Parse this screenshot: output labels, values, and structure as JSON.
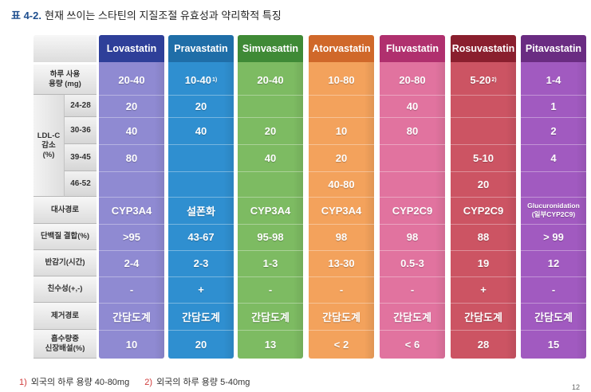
{
  "title": {
    "number": "표 4-2.",
    "text": "현재 쓰이는 스타틴의 지질조절 유효성과 약리학적 특징"
  },
  "drugs": [
    {
      "name": "Lovastatin",
      "header_color": "#2e3f99",
      "body_color": "#8f8ad2"
    },
    {
      "name": "Pravastatin",
      "header_color": "#1f6ea8",
      "body_color": "#2f8fd0"
    },
    {
      "name": "Simvasattin",
      "header_color": "#3f8a36",
      "body_color": "#7dbb62"
    },
    {
      "name": "Atorvastatin",
      "header_color": "#d0682a",
      "body_color": "#f3a25c"
    },
    {
      "name": "Fluvastatin",
      "header_color": "#b0306e",
      "body_color": "#e1739f"
    },
    {
      "name": "Rosuvastatin",
      "header_color": "#8a1f2e",
      "body_color": "#cc5463"
    },
    {
      "name": "Pitavastatin",
      "header_color": "#6a2c82",
      "body_color": "#a15ac0"
    }
  ],
  "row_headers": {
    "dose": "하루 사용\n용량 (mg)",
    "ldl_group": "LDL-C\n감소\n(%)",
    "ldl_ranges": [
      "24-28",
      "30-36",
      "39-45",
      "46-52"
    ],
    "metabolism": "대사경로",
    "protein": "단백질 결합(%)",
    "halflife": "반감기(시간)",
    "affinity": "친수성(+,-)",
    "elimination": "제거경로",
    "renal": "흡수량중\n신장배설(%)"
  },
  "values": {
    "dose": [
      "20-40",
      "10-40",
      "20-40",
      "10-80",
      "20-80",
      "5-20",
      "1-4"
    ],
    "dose_marks": [
      "",
      "1)",
      "",
      "",
      "",
      "2)",
      ""
    ],
    "ldl": [
      [
        "20",
        "20",
        "",
        "",
        "40",
        "",
        "1"
      ],
      [
        "40",
        "40",
        "20",
        "10",
        "80",
        "",
        "2"
      ],
      [
        "80",
        "",
        "40",
        "20",
        "",
        "5-10",
        "4"
      ],
      [
        "",
        "",
        "",
        "40-80",
        "",
        "20",
        ""
      ]
    ],
    "metabolism": [
      "CYP3A4",
      "설폰화",
      "CYP3A4",
      "CYP3A4",
      "CYP2C9",
      "CYP2C9",
      "Glucuronidation\n(일부CYP2C9)"
    ],
    "protein": [
      ">95",
      "43-67",
      "95-98",
      "98",
      "98",
      "88",
      "> 99"
    ],
    "halflife": [
      "2-4",
      "2-3",
      "1-3",
      "13-30",
      "0.5-3",
      "19",
      "12"
    ],
    "affinity": [
      "-",
      "+",
      "-",
      "-",
      "-",
      "+",
      "-"
    ],
    "elimination": [
      "간담도계",
      "간담도계",
      "간담도계",
      "간담도계",
      "간담도계",
      "간담도계",
      "간담도계"
    ],
    "renal": [
      "10",
      "20",
      "13",
      "< 2",
      "< 6",
      "28",
      "15"
    ]
  },
  "footnotes": [
    {
      "mark": "1)",
      "text": "외국의 하루 용량 40-80mg"
    },
    {
      "mark": "2)",
      "text": "외국의 하루 용량 5-40mg"
    }
  ],
  "page_number": "12"
}
